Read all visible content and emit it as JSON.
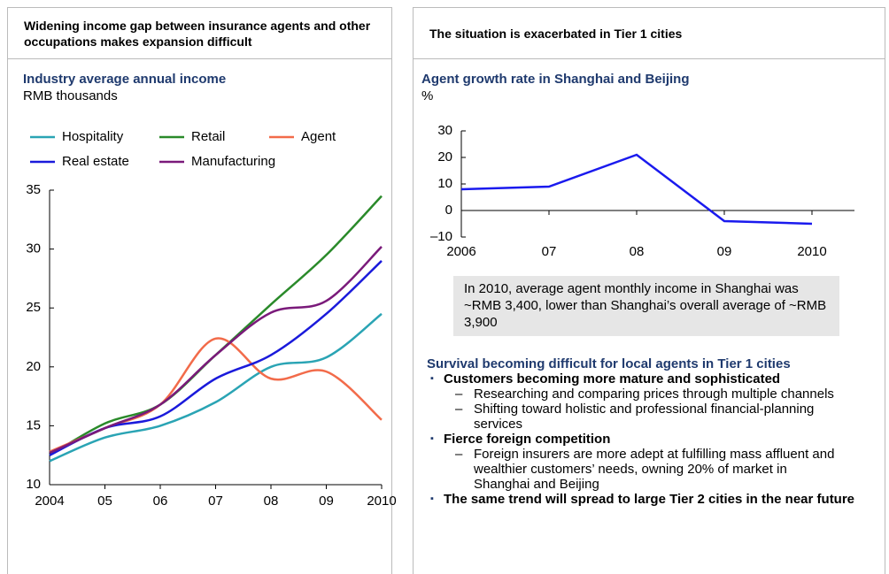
{
  "panels": [
    {
      "heading": "Widening income gap between insurance agents and other occupations makes expansion difficult"
    },
    {
      "heading": "The situation is exacerbated in Tier 1 cities"
    }
  ],
  "chart_data": [
    {
      "type": "line",
      "smooth": true,
      "title": "Industry average annual income",
      "y_label": "RMB thousands",
      "categories": [
        "2004",
        "05",
        "06",
        "07",
        "08",
        "09",
        "2010"
      ],
      "series": [
        {
          "name": "Hospitality",
          "color": "#2aa4b4",
          "values": [
            12.0,
            14.0,
            15.0,
            17.0,
            20.0,
            20.8,
            24.5
          ]
        },
        {
          "name": "Retail",
          "color": "#2a8a2a",
          "values": [
            12.5,
            15.2,
            16.8,
            21.0,
            25.3,
            29.5,
            34.5
          ]
        },
        {
          "name": "Agent",
          "color": "#f26b4a",
          "values": [
            12.8,
            14.8,
            16.8,
            22.4,
            19.0,
            19.6,
            15.5
          ]
        },
        {
          "name": "Real estate",
          "color": "#1a1adb",
          "values": [
            12.5,
            14.8,
            15.8,
            19.0,
            21.0,
            24.5,
            29.0
          ]
        },
        {
          "name": "Manufacturing",
          "color": "#7a1a7a",
          "values": [
            12.7,
            14.8,
            16.8,
            21.0,
            24.6,
            25.6,
            30.2
          ]
        }
      ],
      "ylim": [
        10,
        35
      ],
      "yticks": [
        10,
        15,
        20,
        25,
        30,
        35
      ]
    },
    {
      "type": "line",
      "smooth": false,
      "title": "Agent growth rate in Shanghai and Beijing",
      "y_label": "%",
      "categories": [
        "2006",
        "07",
        "08",
        "09",
        "2010"
      ],
      "series": [
        {
          "color": "#1a1aee",
          "values": [
            8,
            9,
            21,
            -4,
            -5
          ]
        }
      ],
      "ylim": [
        -10,
        30
      ],
      "yticks": [
        {
          "value": -10,
          "label": "–10"
        },
        0,
        10,
        20,
        30
      ]
    }
  ],
  "callout": "In 2010, average agent monthly income in Shanghai was ~RMB 3,400, lower than Shanghai’s overall average of ~RMB 3,900",
  "bullets": {
    "title": "Survival becoming difficult for local agents in Tier 1 cities",
    "items": [
      {
        "text": "Customers becoming more mature and sophisticated",
        "sub": [
          "Researching and comparing prices through multiple channels",
          "Shifting toward holistic and professional financial-planning services"
        ]
      },
      {
        "text": "Fierce foreign competition",
        "sub": [
          "Foreign insurers are more adept at fulfilling mass affluent and wealthier customers’ needs, owning 20% of market in Shanghai and Beijing"
        ]
      },
      {
        "text": "The same trend will spread to large Tier 2 cities in the near future",
        "sub": []
      }
    ]
  }
}
